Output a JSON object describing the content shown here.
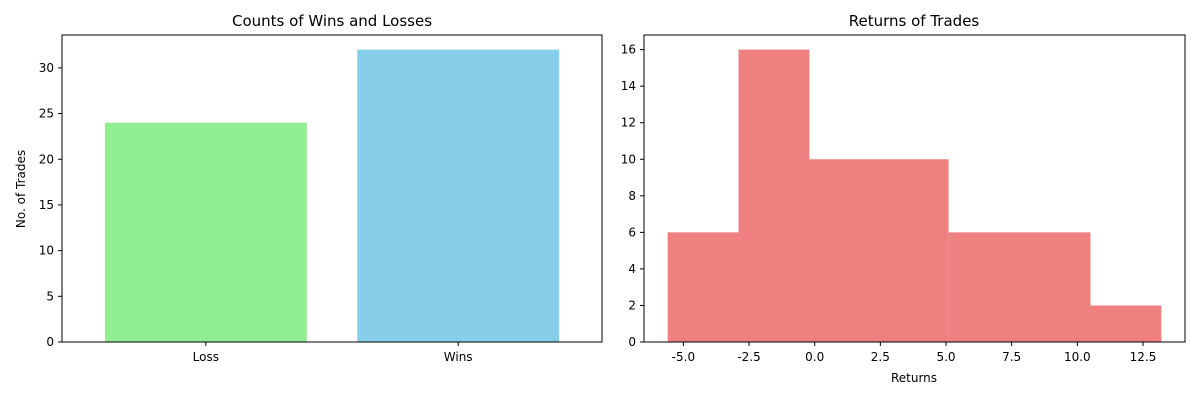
{
  "chart_data": [
    {
      "type": "bar",
      "title": "Counts of Wins and Losses",
      "xlabel": "",
      "ylabel": "No. of Trades",
      "categories": [
        "Loss",
        "Wins"
      ],
      "values": [
        24,
        32
      ],
      "colors": [
        "#90ee90",
        "#87ceeb"
      ],
      "ylim": [
        0,
        33.6
      ],
      "yticks": [
        0,
        5,
        10,
        15,
        20,
        25,
        30
      ],
      "grid": false
    },
    {
      "type": "bar",
      "subtype": "histogram",
      "title": "Returns of Trades",
      "xlabel": "Returns",
      "ylabel": "",
      "bins": [
        {
          "start": -5.6,
          "end": -2.9,
          "count": 6
        },
        {
          "start": -2.9,
          "end": -0.2,
          "count": 16
        },
        {
          "start": -0.2,
          "end": 5.1,
          "count": 10
        },
        {
          "start": 5.1,
          "end": 10.5,
          "count": 6
        },
        {
          "start": 10.5,
          "end": 13.2,
          "count": 2
        }
      ],
      "color": "#f08080",
      "xlim": [
        -6.5,
        14.1
      ],
      "ylim": [
        0,
        16.8
      ],
      "xticks": [
        "-5.0",
        "-2.5",
        "0.0",
        "2.5",
        "5.0",
        "7.5",
        "10.0",
        "12.5"
      ],
      "yticks": [
        0,
        2,
        4,
        6,
        8,
        10,
        12,
        14,
        16
      ],
      "grid": false
    }
  ]
}
